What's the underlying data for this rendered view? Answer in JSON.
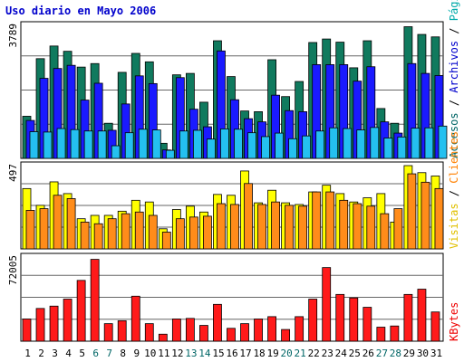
{
  "chart_data": {
    "type": "bar",
    "title": "Uso diario en Mayo 2006",
    "categories": [
      "1",
      "2",
      "3",
      "4",
      "5",
      "6",
      "7",
      "8",
      "9",
      "10",
      "11",
      "12",
      "13",
      "14",
      "15",
      "16",
      "17",
      "18",
      "19",
      "20",
      "21",
      "22",
      "23",
      "24",
      "25",
      "26",
      "27",
      "28",
      "29",
      "30",
      "31"
    ],
    "weekend_days": [
      "6",
      "7",
      "13",
      "14",
      "20",
      "21",
      "27",
      "28"
    ],
    "panels": [
      {
        "ymax_label": "3789",
        "ymax": 3789,
        "legend": [
          {
            "text": "Accesos",
            "color": "#006666"
          },
          {
            "text": " / ",
            "color": "#000000"
          },
          {
            "text": "Archivos",
            "color": "#0000cc"
          },
          {
            "text": " / ",
            "color": "#000000"
          },
          {
            "text": "Páginas",
            "color": "#00aaaa"
          }
        ],
        "series": [
          {
            "name": "Accesos",
            "color": "#107a5e",
            "values": [
              1200,
              2840,
              3200,
              3050,
              2600,
              2700,
              1000,
              2450,
              2990,
              2750,
              430,
              2380,
              2420,
              1600,
              3350,
              2330,
              1350,
              1330,
              2810,
              1760,
              2190,
              3300,
              3400,
              3310,
              2580,
              3350,
              1420,
              1000,
              3750,
              3530,
              3460
            ]
          },
          {
            "name": "Archivos",
            "color": "#1a1aff",
            "values": [
              1080,
              2280,
              2560,
              2650,
              1660,
              2140,
              800,
              1550,
              2350,
              2130,
              240,
              2300,
              1400,
              900,
              3060,
              1670,
              1130,
              1040,
              1800,
              1360,
              1330,
              2670,
              2670,
              2670,
              2200,
              2610,
              1040,
              720,
              2700,
              2420,
              2360
            ]
          },
          {
            "name": "Páginas",
            "color": "#24c0f0",
            "values": [
              760,
              750,
              850,
              820,
              780,
              780,
              360,
              730,
              830,
              810,
              230,
              780,
              800,
              550,
              840,
              830,
              730,
              620,
              720,
              560,
              640,
              780,
              870,
              850,
              810,
              880,
              580,
              610,
              860,
              870,
              920
            ]
          }
        ]
      },
      {
        "ymax_label": "497",
        "ymax": 497,
        "legend": [
          {
            "text": "Visitas",
            "color": "#e0c000"
          },
          {
            "text": " / ",
            "color": "#000000"
          },
          {
            "text": "Clientes",
            "color": "#ff8000"
          }
        ],
        "series": [
          {
            "name": "Visitas",
            "color": "#ffff00",
            "values": [
              360,
              260,
              400,
              330,
              180,
              200,
              200,
              225,
              290,
              280,
              120,
              235,
              255,
              220,
              325,
              320,
              465,
              275,
              350,
              275,
              265,
              340,
              380,
              330,
              280,
              305,
              330,
              160,
              497,
              455,
              435
            ]
          },
          {
            "name": "Clientes",
            "color": "#ff8c1a",
            "values": [
              230,
              240,
              320,
              300,
              160,
              150,
              180,
              210,
              220,
              200,
              100,
              180,
              190,
              195,
              270,
              265,
              390,
              265,
              280,
              260,
              255,
              340,
              340,
              290,
              270,
              255,
              210,
              240,
              448,
              398,
              360
            ]
          }
        ]
      },
      {
        "ymax_label": "72005",
        "ymax": 72005,
        "legend": [
          {
            "text": "KBytes",
            "color": "#ee0000"
          }
        ],
        "series": [
          {
            "name": "KBytes",
            "color": "#ff1a1a",
            "values": [
              19000,
              28000,
              30000,
              36000,
              52000,
              70000,
              15000,
              17500,
              38500,
              15000,
              6000,
              19000,
              19500,
              13500,
              31500,
              11000,
              15000,
              19000,
              21000,
              10000,
              21000,
              36000,
              63000,
              40000,
              37000,
              29000,
              12000,
              13000,
              40000,
              44500,
              25000
            ]
          }
        ]
      }
    ]
  }
}
